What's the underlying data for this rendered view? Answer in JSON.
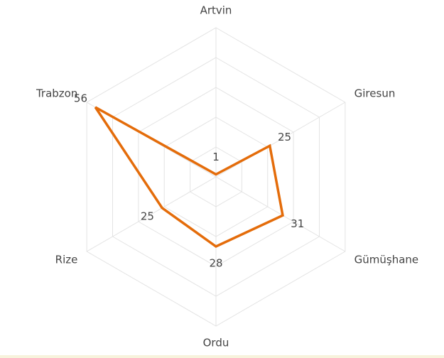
{
  "chart_data": {
    "type": "radar",
    "categories": [
      "Artvin",
      "Giresun",
      "Gümüşhane",
      "Ordu",
      "Rize",
      "Trabzon"
    ],
    "values": [
      1,
      25,
      31,
      28,
      25,
      56
    ],
    "color": "#e46c0a",
    "ylim": [
      0,
      60
    ],
    "yticks": [
      0,
      12,
      24,
      36,
      48,
      60
    ],
    "grid": true
  }
}
